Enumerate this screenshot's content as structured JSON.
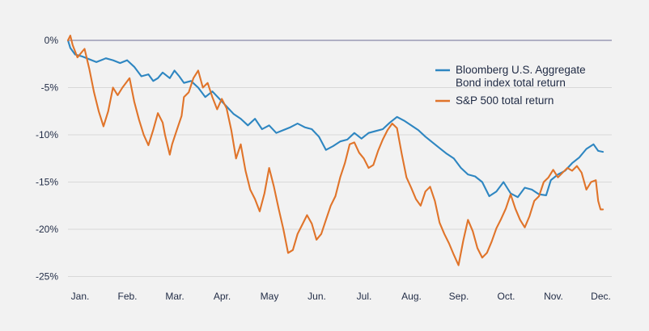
{
  "chart_data": {
    "type": "line",
    "title": "",
    "xlabel": "",
    "ylabel": "",
    "x_ticks": [
      "Jan.",
      "Feb.",
      "Mar.",
      "Apr.",
      "May",
      "Jun.",
      "Jul.",
      "Aug.",
      "Sep.",
      "Oct.",
      "Nov.",
      "Dec."
    ],
    "y_ticks": [
      "0%",
      "-5%",
      "-10%",
      "-15%",
      "-20%",
      "-25%"
    ],
    "ylim": [
      -25,
      0
    ],
    "grid": "horizontal",
    "legend_position": "top-right",
    "colors": {
      "bond": "#2e86c1",
      "sp500": "#e0742a",
      "zero_line": "#9a9ab5",
      "grid": "#d8d8d8"
    },
    "series": [
      {
        "key": "bond",
        "name": "Bloomberg U.S. Aggregate Bond index total return",
        "legend_lines": [
          "Bloomberg U.S. Aggregate",
          "Bond index total return"
        ],
        "color": "#2e86c1",
        "points": [
          [
            0.0,
            0
          ],
          [
            0.05,
            -0.8
          ],
          [
            0.15,
            -1.5
          ],
          [
            0.3,
            -1.7
          ],
          [
            0.45,
            -2.0
          ],
          [
            0.6,
            -2.3
          ],
          [
            0.8,
            -1.9
          ],
          [
            0.95,
            -2.1
          ],
          [
            1.1,
            -2.4
          ],
          [
            1.25,
            -2.1
          ],
          [
            1.4,
            -2.8
          ],
          [
            1.55,
            -3.8
          ],
          [
            1.7,
            -3.6
          ],
          [
            1.8,
            -4.3
          ],
          [
            1.9,
            -4.0
          ],
          [
            2.0,
            -3.4
          ],
          [
            2.15,
            -4.0
          ],
          [
            2.25,
            -3.2
          ],
          [
            2.35,
            -3.8
          ],
          [
            2.45,
            -4.5
          ],
          [
            2.6,
            -4.3
          ],
          [
            2.75,
            -5.0
          ],
          [
            2.9,
            -6.0
          ],
          [
            3.05,
            -5.4
          ],
          [
            3.2,
            -6.2
          ],
          [
            3.35,
            -7.0
          ],
          [
            3.5,
            -7.8
          ],
          [
            3.65,
            -8.3
          ],
          [
            3.8,
            -9.0
          ],
          [
            3.95,
            -8.3
          ],
          [
            4.1,
            -9.4
          ],
          [
            4.25,
            -9.0
          ],
          [
            4.4,
            -9.8
          ],
          [
            4.55,
            -9.5
          ],
          [
            4.7,
            -9.2
          ],
          [
            4.85,
            -8.8
          ],
          [
            5.0,
            -9.2
          ],
          [
            5.15,
            -9.4
          ],
          [
            5.3,
            -10.2
          ],
          [
            5.45,
            -11.6
          ],
          [
            5.6,
            -11.2
          ],
          [
            5.75,
            -10.7
          ],
          [
            5.9,
            -10.5
          ],
          [
            6.05,
            -9.8
          ],
          [
            6.2,
            -10.4
          ],
          [
            6.35,
            -9.8
          ],
          [
            6.5,
            -9.6
          ],
          [
            6.65,
            -9.4
          ],
          [
            6.8,
            -8.7
          ],
          [
            6.95,
            -8.1
          ],
          [
            7.1,
            -8.5
          ],
          [
            7.25,
            -9.0
          ],
          [
            7.4,
            -9.5
          ],
          [
            7.55,
            -10.2
          ],
          [
            7.7,
            -10.8
          ],
          [
            7.85,
            -11.4
          ],
          [
            8.0,
            -12.0
          ],
          [
            8.15,
            -12.5
          ],
          [
            8.3,
            -13.5
          ],
          [
            8.45,
            -14.2
          ],
          [
            8.6,
            -14.4
          ],
          [
            8.75,
            -15.0
          ],
          [
            8.9,
            -16.5
          ],
          [
            9.05,
            -16.0
          ],
          [
            9.2,
            -15.0
          ],
          [
            9.35,
            -16.2
          ],
          [
            9.5,
            -16.6
          ],
          [
            9.65,
            -15.6
          ],
          [
            9.8,
            -15.8
          ],
          [
            9.95,
            -16.3
          ],
          [
            10.1,
            -16.4
          ],
          [
            10.2,
            -14.8
          ],
          [
            10.35,
            -14.2
          ],
          [
            10.5,
            -13.8
          ],
          [
            10.65,
            -13.0
          ],
          [
            10.8,
            -12.4
          ],
          [
            10.95,
            -11.5
          ],
          [
            11.1,
            -11.0
          ],
          [
            11.2,
            -11.7
          ],
          [
            11.3,
            -11.8
          ]
        ]
      },
      {
        "key": "sp500",
        "name": "S&P 500 total return",
        "legend_lines": [
          "S&P 500 total return"
        ],
        "color": "#e0742a",
        "points": [
          [
            0.0,
            0
          ],
          [
            0.05,
            0.5
          ],
          [
            0.1,
            -0.5
          ],
          [
            0.2,
            -1.8
          ],
          [
            0.3,
            -1.2
          ],
          [
            0.35,
            -0.9
          ],
          [
            0.45,
            -3.0
          ],
          [
            0.55,
            -5.5
          ],
          [
            0.65,
            -7.5
          ],
          [
            0.75,
            -9.1
          ],
          [
            0.85,
            -7.5
          ],
          [
            0.95,
            -5.0
          ],
          [
            1.05,
            -5.8
          ],
          [
            1.15,
            -5.0
          ],
          [
            1.3,
            -4.0
          ],
          [
            1.4,
            -6.5
          ],
          [
            1.5,
            -8.4
          ],
          [
            1.6,
            -10.0
          ],
          [
            1.7,
            -11.1
          ],
          [
            1.8,
            -9.5
          ],
          [
            1.9,
            -7.7
          ],
          [
            2.0,
            -8.7
          ],
          [
            2.05,
            -10.0
          ],
          [
            2.15,
            -12.1
          ],
          [
            2.2,
            -11.0
          ],
          [
            2.3,
            -9.5
          ],
          [
            2.4,
            -8.0
          ],
          [
            2.45,
            -6.0
          ],
          [
            2.55,
            -5.5
          ],
          [
            2.65,
            -4.0
          ],
          [
            2.75,
            -3.2
          ],
          [
            2.85,
            -5.0
          ],
          [
            2.95,
            -4.5
          ],
          [
            3.05,
            -6.0
          ],
          [
            3.15,
            -7.3
          ],
          [
            3.25,
            -6.2
          ],
          [
            3.35,
            -7.2
          ],
          [
            3.45,
            -9.5
          ],
          [
            3.55,
            -12.5
          ],
          [
            3.65,
            -11.0
          ],
          [
            3.75,
            -13.8
          ],
          [
            3.85,
            -15.8
          ],
          [
            3.95,
            -16.8
          ],
          [
            4.05,
            -18.1
          ],
          [
            4.15,
            -16.2
          ],
          [
            4.25,
            -13.5
          ],
          [
            4.35,
            -15.5
          ],
          [
            4.45,
            -17.8
          ],
          [
            4.55,
            -20.0
          ],
          [
            4.65,
            -22.5
          ],
          [
            4.75,
            -22.2
          ],
          [
            4.85,
            -20.5
          ],
          [
            4.95,
            -19.5
          ],
          [
            5.05,
            -18.5
          ],
          [
            5.15,
            -19.4
          ],
          [
            5.25,
            -21.1
          ],
          [
            5.35,
            -20.5
          ],
          [
            5.45,
            -19.0
          ],
          [
            5.55,
            -17.5
          ],
          [
            5.65,
            -16.5
          ],
          [
            5.75,
            -14.5
          ],
          [
            5.85,
            -13.0
          ],
          [
            5.95,
            -11.0
          ],
          [
            6.05,
            -10.8
          ],
          [
            6.15,
            -11.9
          ],
          [
            6.25,
            -12.5
          ],
          [
            6.35,
            -13.5
          ],
          [
            6.45,
            -13.2
          ],
          [
            6.55,
            -11.7
          ],
          [
            6.65,
            -10.5
          ],
          [
            6.75,
            -9.5
          ],
          [
            6.85,
            -8.8
          ],
          [
            6.95,
            -9.3
          ],
          [
            7.05,
            -12.0
          ],
          [
            7.15,
            -14.5
          ],
          [
            7.25,
            -15.6
          ],
          [
            7.35,
            -16.8
          ],
          [
            7.45,
            -17.5
          ],
          [
            7.55,
            -16.0
          ],
          [
            7.65,
            -15.5
          ],
          [
            7.75,
            -17.0
          ],
          [
            7.85,
            -19.3
          ],
          [
            7.95,
            -20.5
          ],
          [
            8.05,
            -21.5
          ],
          [
            8.15,
            -22.7
          ],
          [
            8.25,
            -23.8
          ],
          [
            8.35,
            -21.2
          ],
          [
            8.45,
            -19.0
          ],
          [
            8.55,
            -20.2
          ],
          [
            8.65,
            -22.0
          ],
          [
            8.75,
            -23.0
          ],
          [
            8.85,
            -22.5
          ],
          [
            8.95,
            -21.3
          ],
          [
            9.05,
            -19.9
          ],
          [
            9.15,
            -18.9
          ],
          [
            9.25,
            -17.8
          ],
          [
            9.35,
            -16.3
          ],
          [
            9.45,
            -17.8
          ],
          [
            9.55,
            -19.0
          ],
          [
            9.65,
            -19.8
          ],
          [
            9.75,
            -18.6
          ],
          [
            9.85,
            -17.0
          ],
          [
            9.95,
            -16.5
          ],
          [
            10.05,
            -15.0
          ],
          [
            10.15,
            -14.5
          ],
          [
            10.25,
            -13.7
          ],
          [
            10.35,
            -14.5
          ],
          [
            10.45,
            -14.0
          ],
          [
            10.55,
            -13.5
          ],
          [
            10.65,
            -13.8
          ],
          [
            10.75,
            -13.3
          ],
          [
            10.85,
            -14.0
          ],
          [
            10.95,
            -15.8
          ],
          [
            11.05,
            -15.0
          ],
          [
            11.15,
            -14.8
          ],
          [
            11.2,
            -17.0
          ],
          [
            11.25,
            -17.9
          ],
          [
            11.3,
            -17.9
          ]
        ]
      }
    ]
  }
}
